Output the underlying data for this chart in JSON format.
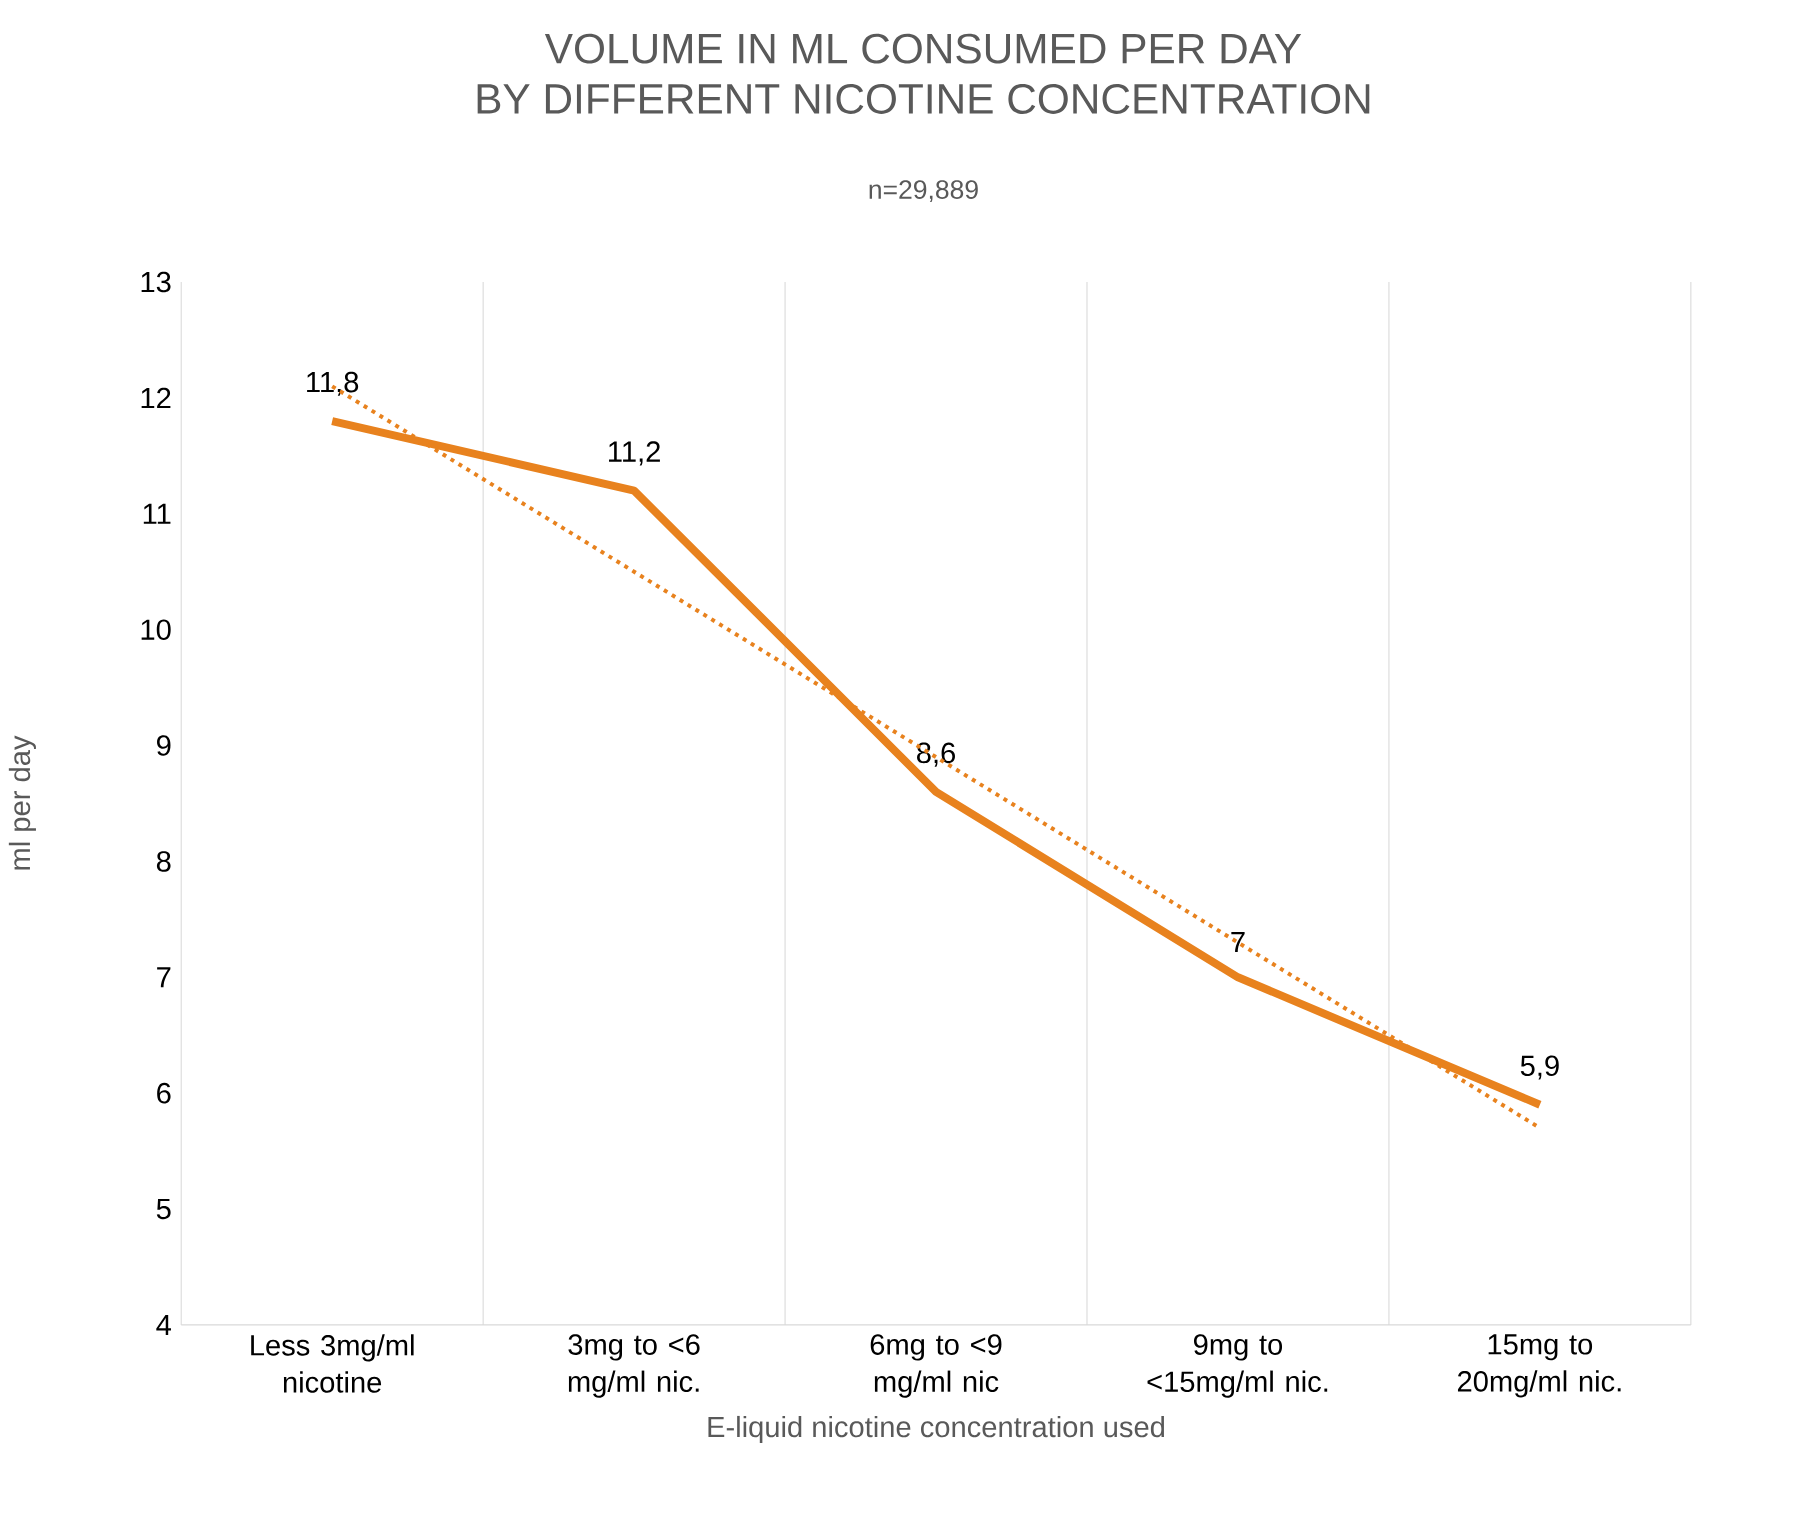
{
  "chart_data": {
    "type": "line",
    "title": "VOLUME IN ML CONSUMED PER DAY\nBY DIFFERENT NICOTINE CONCENTRATION",
    "subtitle": "n=29,889",
    "xlabel": "E-liquid nicotine concentration used",
    "ylabel": "ml per day",
    "categories": [
      "Less 3mg/ml nicotine",
      "3mg to <6 mg/ml nic.",
      "6mg to <9 mg/ml nic",
      "9mg to <15mg/ml nic.",
      "15mg to 20mg/ml nic."
    ],
    "series": [
      {
        "color": "#e8821e",
        "values": [
          11.8,
          11.2,
          8.6,
          7,
          5.9
        ],
        "value_labels": [
          "11,8",
          "11,2",
          "8,6",
          "7",
          "5,9"
        ],
        "line_style": "solid"
      },
      {
        "color": "#e8821e",
        "values": [
          12.1,
          10.5,
          8.9,
          7.3,
          5.7
        ],
        "line_style": "dotted"
      }
    ],
    "ylim": [
      4,
      13
    ],
    "yticks": [
      4,
      5,
      6,
      7,
      8,
      9,
      10,
      11,
      12,
      13
    ],
    "grid": "x",
    "marker": "none"
  }
}
